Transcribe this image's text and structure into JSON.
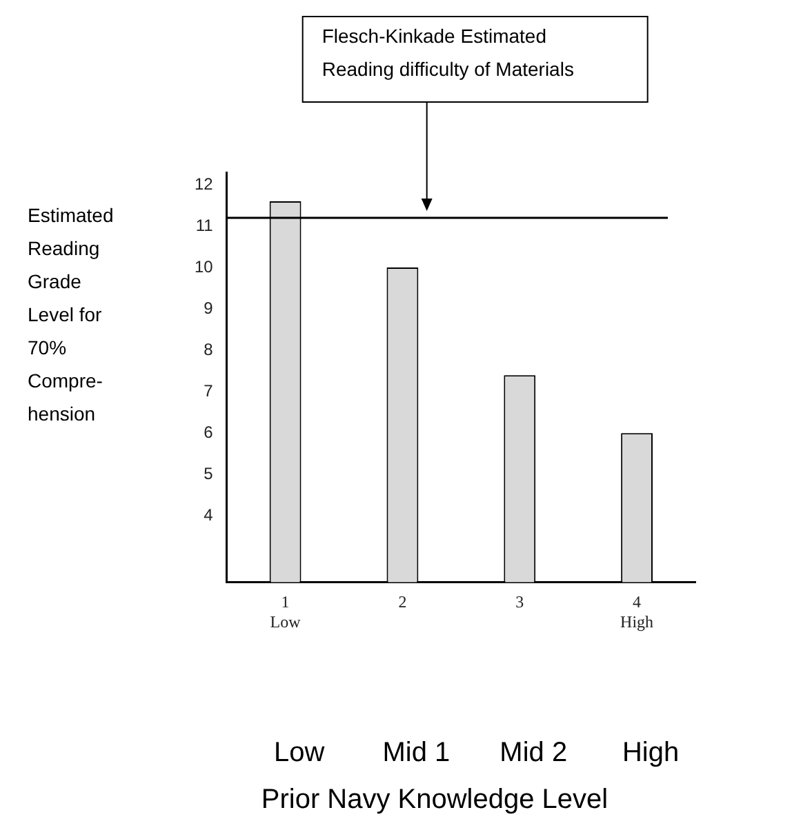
{
  "chart_data": {
    "type": "bar",
    "categories": [
      "1\nLow",
      "2",
      "3",
      "4\nHigh"
    ],
    "values": [
      11.6,
      10.0,
      7.4,
      6.0
    ],
    "color": "#d9d9d9",
    "ylim": [
      2.4,
      12.3
    ],
    "yticks": [
      4,
      5,
      6,
      7,
      8,
      9,
      10,
      11,
      12
    ],
    "grid": false,
    "ylabel": "Estimated Reading Grade Level for 70% Compre-hension",
    "ref_lines": [
      {
        "axis": "y",
        "value": 11.2,
        "label": "Flesch-Kinkade Estimated Reading difficulty of Materials"
      }
    ],
    "annotations": [
      "Low",
      "Mid 1",
      "Mid 2",
      "High",
      "Prior Navy Knowledge Level"
    ]
  }
}
